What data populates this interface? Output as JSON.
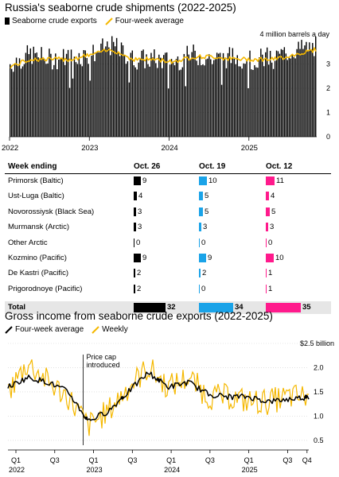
{
  "top": {
    "title": "Russia's seaborne crude shipments (2022-2025)",
    "legend": [
      "Seaborne crude exports",
      "Four-week average"
    ],
    "unit_label": "4 million barrels a day",
    "y_ticks": [
      "0",
      "1",
      "2",
      "3"
    ],
    "x_ticks": [
      "2022",
      "2023",
      "2024",
      "2025"
    ]
  },
  "table": {
    "headers": [
      "Week ending",
      "Oct. 26",
      "Oct. 19",
      "Oct. 12"
    ],
    "colors": [
      "#000000",
      "#1aa3e8",
      "#ff1a8c"
    ],
    "rows": [
      {
        "label": "Primorsk (Baltic)",
        "values": [
          9,
          10,
          11
        ],
        "text": [
          "9",
          "10",
          "11"
        ]
      },
      {
        "label": "Ust-Luga (Baltic)",
        "values": [
          4,
          5,
          4
        ],
        "text": [
          "4",
          "5",
          "4"
        ]
      },
      {
        "label": "Novorossiysk (Black Sea)",
        "values": [
          3,
          5,
          5
        ],
        "text": [
          "3",
          "5",
          "5"
        ]
      },
      {
        "label": "Murmansk (Arctic)",
        "values": [
          3,
          3,
          3
        ],
        "text": [
          "3",
          "3",
          "3"
        ]
      },
      {
        "label": "Other Arctic",
        "values": [
          0,
          0,
          0
        ],
        "text": [
          "0",
          "0",
          "0"
        ]
      },
      {
        "label": "Kozmino (Pacific)",
        "values": [
          9,
          9,
          10
        ],
        "text": [
          "9",
          "9",
          "10"
        ]
      },
      {
        "label": "De Kastri (Pacific)",
        "values": [
          2,
          2,
          1
        ],
        "text": [
          "2",
          "2",
          "1"
        ]
      },
      {
        "label": "Prigorodnoye (Pacific)",
        "values": [
          2,
          0,
          1
        ],
        "text": [
          "2",
          "0",
          "1"
        ]
      }
    ],
    "total": {
      "label": "Total",
      "values": [
        32,
        34,
        35
      ],
      "text": [
        "32",
        "34",
        "35"
      ]
    }
  },
  "bottom": {
    "title": "Gross income from seaborne crude exports (2022-2025)",
    "legend": [
      "Four-week average",
      "Weekly"
    ],
    "unit_label": "$2.5 billion",
    "y_ticks": [
      "0.5",
      "1.0",
      "1.5",
      "2.0"
    ],
    "x_ticks": [
      "Q1",
      "Q3",
      "Q1",
      "Q3",
      "Q1",
      "Q3",
      "Q1",
      "Q3",
      "Q4"
    ],
    "x_years": [
      "2022",
      "2023",
      "2024",
      "2025"
    ],
    "annotation": "Price cap\nintroduced"
  },
  "chart_data": [
    {
      "type": "bar",
      "title": "Russia's seaborne crude shipments (2022-2025)",
      "ylabel": "million barrels a day",
      "ylim": [
        0,
        4.2
      ],
      "x": [
        "2022-01",
        "2022-04",
        "2022-07",
        "2022-10",
        "2023-01",
        "2023-04",
        "2023-07",
        "2023-10",
        "2024-01",
        "2024-04",
        "2024-07",
        "2024-10",
        "2025-01",
        "2025-04",
        "2025-07",
        "2025-10"
      ],
      "series": [
        {
          "name": "Seaborne crude exports",
          "values": [
            3.0,
            3.4,
            3.2,
            3.3,
            3.4,
            3.8,
            3.2,
            3.2,
            3.1,
            3.4,
            3.2,
            3.3,
            3.2,
            3.3,
            3.6,
            3.7
          ]
        },
        {
          "name": "Four-week average",
          "values": [
            2.9,
            3.2,
            3.2,
            3.2,
            3.4,
            3.6,
            3.2,
            3.2,
            3.1,
            3.3,
            3.3,
            3.2,
            3.2,
            3.2,
            3.4,
            3.6
          ]
        }
      ]
    },
    {
      "type": "line",
      "title": "Gross income from seaborne crude exports (2022-2025)",
      "ylabel": "$ billion",
      "ylim": [
        0.4,
        2.5
      ],
      "x": [
        "2022-Q1",
        "2022-Q2",
        "2022-Q3",
        "2022-Q4",
        "2023-Q1",
        "2023-Q2",
        "2023-Q3",
        "2023-Q4",
        "2024-Q1",
        "2024-Q2",
        "2024-Q3",
        "2024-Q4",
        "2025-Q1",
        "2025-Q2",
        "2025-Q3",
        "2025-Q4"
      ],
      "series": [
        {
          "name": "Four-week average",
          "values": [
            1.6,
            1.8,
            1.7,
            1.5,
            0.9,
            1.1,
            1.5,
            1.9,
            1.6,
            1.7,
            1.45,
            1.4,
            1.4,
            1.3,
            1.35,
            1.4
          ]
        },
        {
          "name": "Weekly",
          "values": [
            1.5,
            2.1,
            1.7,
            1.4,
            0.8,
            1.1,
            1.6,
            2.0,
            1.6,
            1.8,
            1.4,
            1.4,
            1.3,
            1.3,
            1.4,
            1.4
          ]
        }
      ]
    }
  ]
}
